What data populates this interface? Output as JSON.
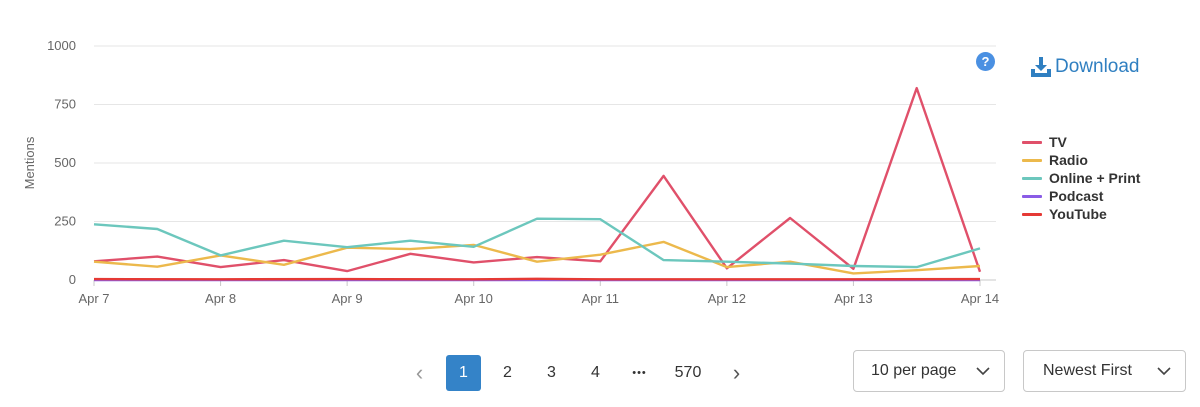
{
  "chart_data": {
    "type": "line",
    "title": "",
    "xlabel": "",
    "ylabel": "Mentions",
    "ylim": [
      0,
      1000
    ],
    "yticks": [
      0,
      250,
      500,
      750,
      1000
    ],
    "x_tick_labels": [
      "Apr 7",
      "Apr 8",
      "Apr 9",
      "Apr 10",
      "Apr 11",
      "Apr 12",
      "Apr 13",
      "Apr 14"
    ],
    "grid": true,
    "legend_position": "right",
    "series": [
      {
        "name": "TV",
        "color": "#e0506a",
        "points": [
          [
            0,
            80
          ],
          [
            0.5,
            100
          ],
          [
            1,
            55
          ],
          [
            1.5,
            85
          ],
          [
            2,
            38
          ],
          [
            2.5,
            112
          ],
          [
            3,
            75
          ],
          [
            3.5,
            98
          ],
          [
            4,
            80
          ],
          [
            4.5,
            445
          ],
          [
            5,
            50
          ],
          [
            5.5,
            265
          ],
          [
            6,
            48
          ],
          [
            6.5,
            820
          ],
          [
            7,
            35
          ]
        ]
      },
      {
        "name": "Radio",
        "color": "#ecb94c",
        "points": [
          [
            0,
            78
          ],
          [
            0.5,
            57
          ],
          [
            1,
            105
          ],
          [
            1.5,
            65
          ],
          [
            2,
            138
          ],
          [
            2.5,
            132
          ],
          [
            3,
            150
          ],
          [
            3.5,
            78
          ],
          [
            4,
            108
          ],
          [
            4.5,
            163
          ],
          [
            5,
            55
          ],
          [
            5.5,
            78
          ],
          [
            6,
            28
          ],
          [
            6.5,
            42
          ],
          [
            7,
            60
          ]
        ]
      },
      {
        "name": "Online + Print",
        "color": "#6cc7bd",
        "points": [
          [
            0,
            238
          ],
          [
            0.5,
            218
          ],
          [
            1,
            105
          ],
          [
            1.5,
            168
          ],
          [
            2,
            140
          ],
          [
            2.5,
            168
          ],
          [
            3,
            142
          ],
          [
            3.5,
            262
          ],
          [
            4,
            260
          ],
          [
            4.5,
            85
          ],
          [
            5,
            78
          ],
          [
            5.5,
            70
          ],
          [
            6,
            60
          ],
          [
            6.5,
            55
          ],
          [
            7,
            135
          ]
        ]
      },
      {
        "name": "Podcast",
        "color": "#8a5ce6",
        "points": [
          [
            0,
            0
          ],
          [
            1,
            0
          ],
          [
            2,
            0
          ],
          [
            3,
            0
          ],
          [
            4,
            0
          ],
          [
            5,
            0
          ],
          [
            6,
            0
          ],
          [
            7,
            0
          ]
        ]
      },
      {
        "name": "YouTube",
        "color": "#e53935",
        "points": [
          [
            0,
            4
          ],
          [
            1,
            3
          ],
          [
            2,
            4
          ],
          [
            3,
            3
          ],
          [
            3.5,
            5
          ],
          [
            4,
            3
          ],
          [
            5,
            3
          ],
          [
            6,
            3
          ],
          [
            7,
            4
          ]
        ]
      }
    ]
  },
  "toolbar": {
    "help_symbol": "?",
    "download_label": "Download"
  },
  "pagination": {
    "prev_symbol": "‹",
    "pages": [
      "1",
      "2",
      "3",
      "4"
    ],
    "ellipsis": "•••",
    "last_page": "570",
    "next_symbol": "›",
    "active_page": "1"
  },
  "per_page": {
    "value": "10 per page"
  },
  "sort": {
    "value": "Newest First"
  }
}
